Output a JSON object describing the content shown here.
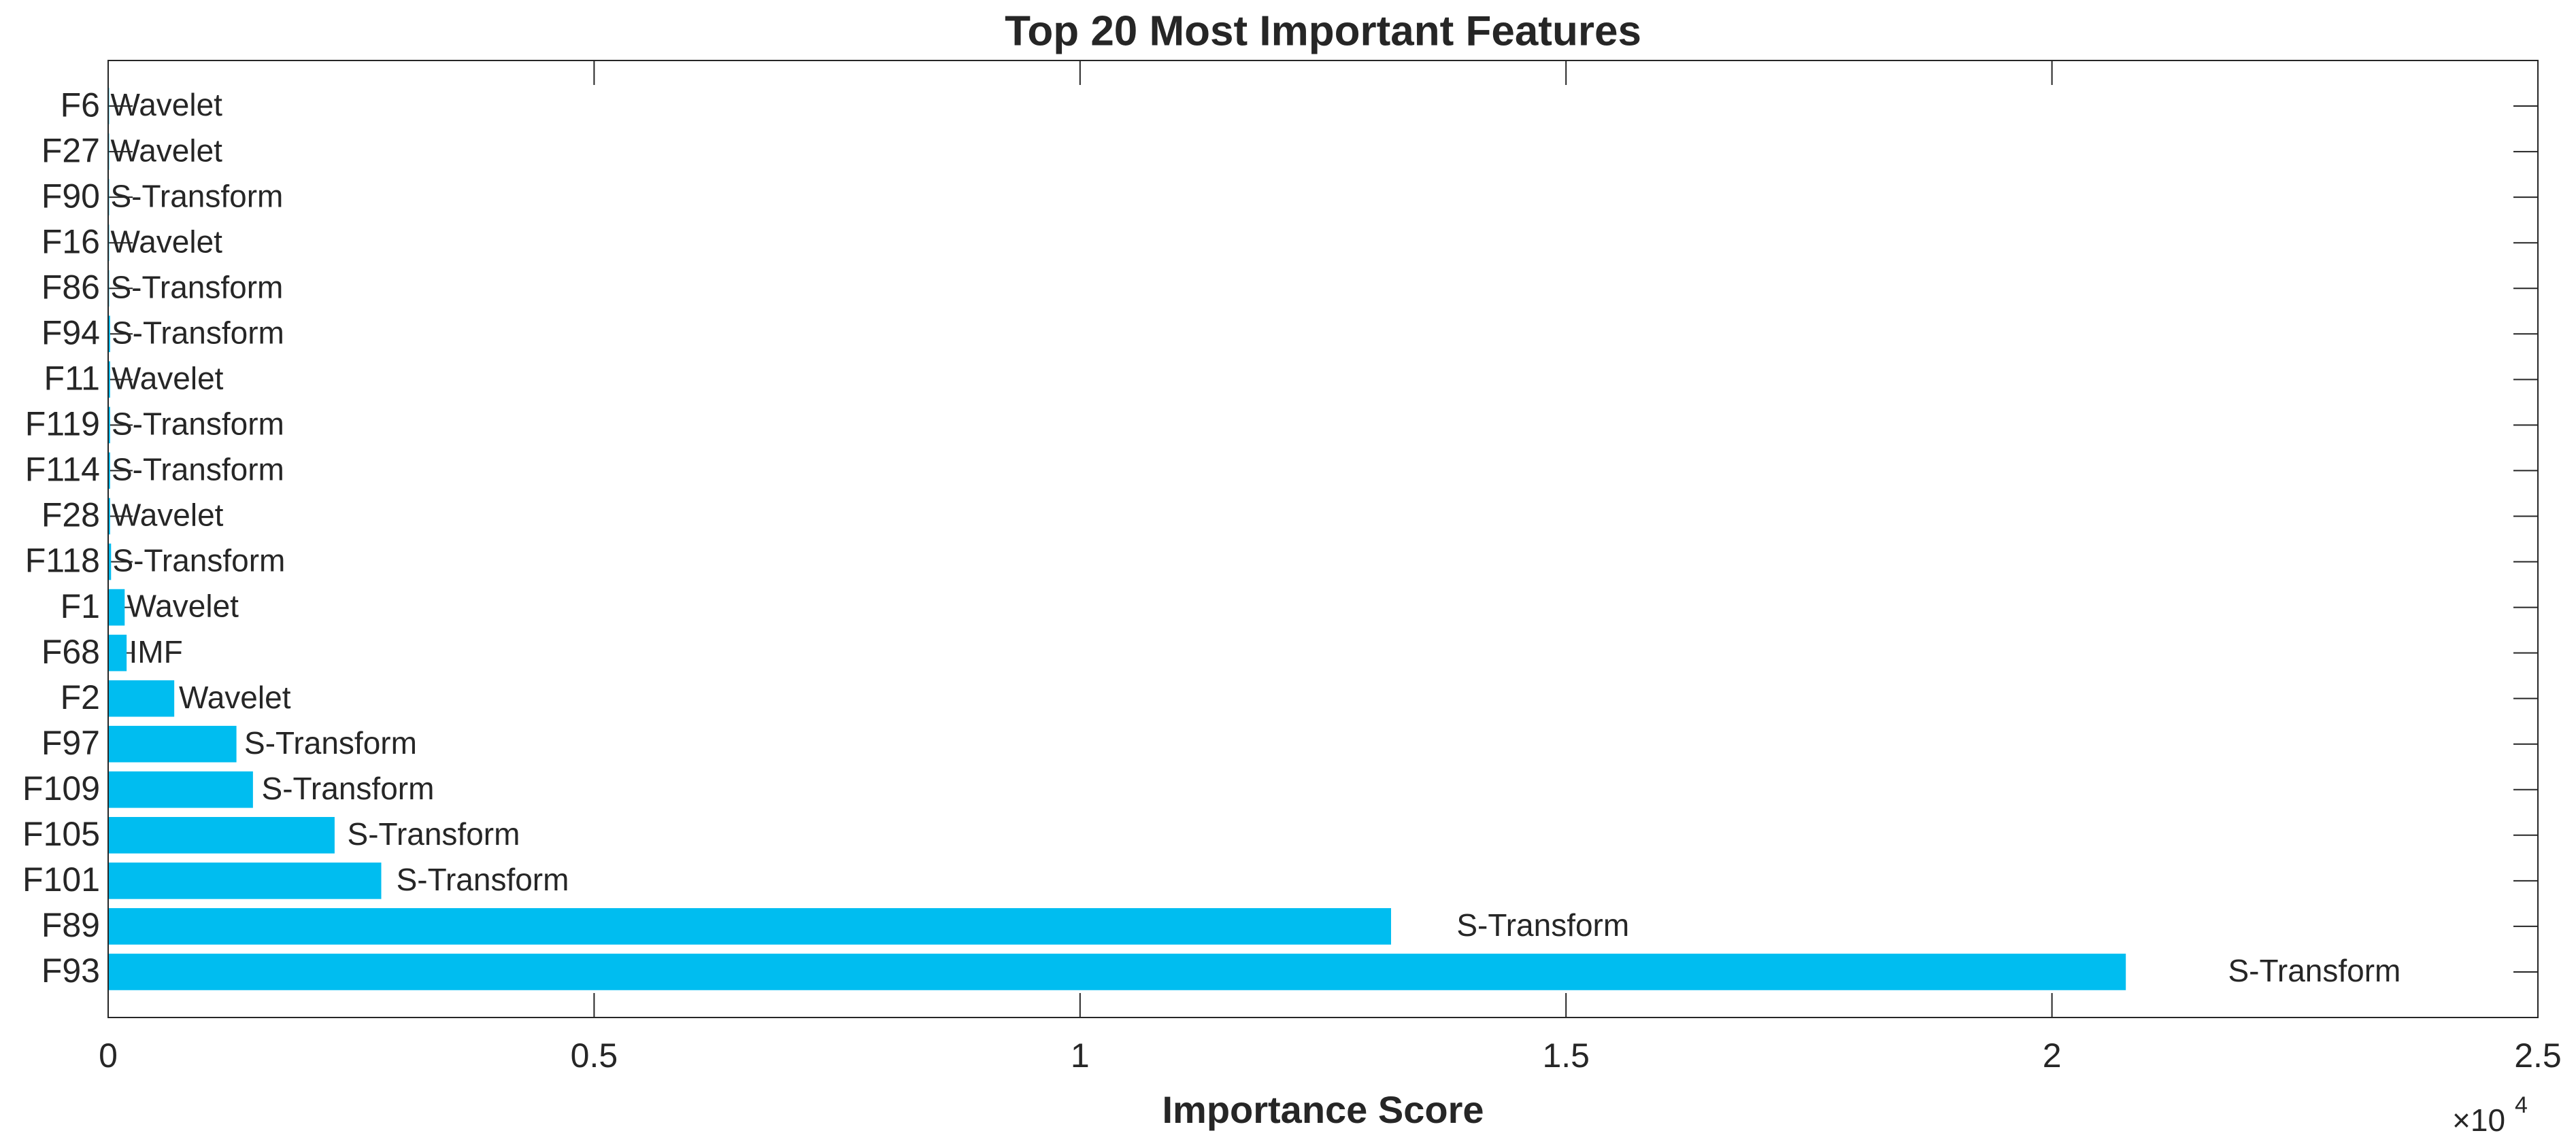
{
  "chart_data": {
    "type": "barh",
    "title": "Top 20 Most Important Features",
    "xlabel": "Importance Score",
    "x_multiplier": {
      "base": "×10",
      "exponent": "4"
    },
    "categories": [
      "F6",
      "F27",
      "F90",
      "F16",
      "F86",
      "F94",
      "F11",
      "F119",
      "F114",
      "F28",
      "F118",
      "F1",
      "F68",
      "F2",
      "F97",
      "F109",
      "F105",
      "F101",
      "F89",
      "F93"
    ],
    "values": [
      0.001,
      0.001,
      0.001,
      0.001,
      0.001,
      0.002,
      0.002,
      0.002,
      0.002,
      0.002,
      0.003,
      0.017,
      0.019,
      0.068,
      0.132,
      0.149,
      0.233,
      0.281,
      1.32,
      2.076
    ],
    "bar_labels": [
      "Wavelet",
      "Wavelet",
      "S-Transform",
      "Wavelet",
      "S-Transform",
      "S-Transform",
      "Wavelet",
      "S-Transform",
      "S-Transform",
      "Wavelet",
      "S-Transform",
      "Wavelet",
      "IMF",
      "Wavelet",
      "S-Transform",
      "S-Transform",
      "S-Transform",
      "S-Transform",
      "S-Transform",
      "S-Transform"
    ],
    "color": "#00bdf0",
    "xlim": [
      0,
      2.5
    ],
    "xticks": [
      0,
      0.5,
      1,
      1.5,
      2,
      2.5
    ],
    "grid": false
  }
}
